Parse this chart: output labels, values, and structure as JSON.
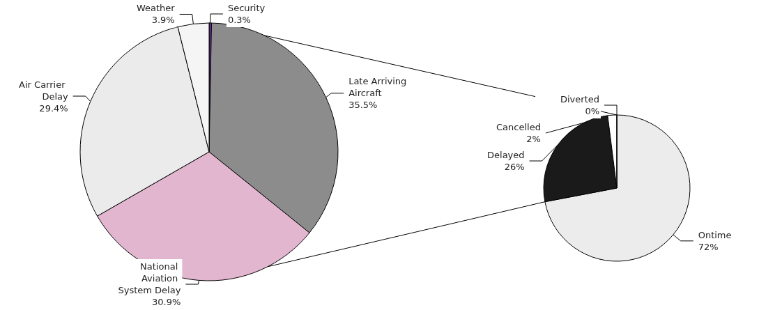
{
  "chart_data": [
    {
      "type": "pie",
      "categories": [
        "Security",
        "Late Arriving Aircraft",
        "National Aviation System Delay",
        "Air Carrier Delay",
        "Weather"
      ],
      "values": [
        0.3,
        35.5,
        30.9,
        29.4,
        3.9
      ],
      "value_labels": [
        "0.3%",
        "35.5%",
        "30.9%",
        "29.4%",
        "3.9%"
      ],
      "colors": [
        "#7030a0",
        "#8c8c8c",
        "#e3b6d0",
        "#ebebeb",
        "#f5f5f5"
      ]
    },
    {
      "type": "pie",
      "categories": [
        "Ontime",
        "Delayed",
        "Cancelled",
        "Diverted"
      ],
      "values": [
        72,
        26,
        2,
        0
      ],
      "value_labels": [
        "72%",
        "26%",
        "2%",
        "0%"
      ],
      "colors": [
        "#ececec",
        "#1a1a1a",
        "#ffffff",
        "#bfbfbf"
      ]
    }
  ]
}
